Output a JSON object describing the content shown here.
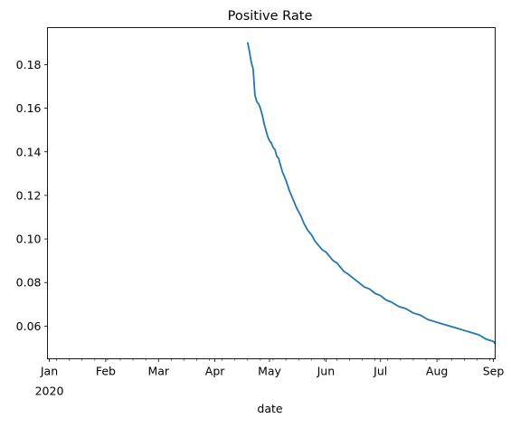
{
  "chart_data": {
    "type": "line",
    "title": "Positive Rate",
    "xlabel": "date",
    "ylabel": "",
    "x_axis": {
      "kind": "date",
      "range": [
        "2019-12-31",
        "2020-09-02"
      ],
      "major_ticks": [
        {
          "date": "2020-01-01",
          "label": "Jan",
          "sublabel": "2020"
        },
        {
          "date": "2020-02-01",
          "label": "Feb"
        },
        {
          "date": "2020-03-01",
          "label": "Mar"
        },
        {
          "date": "2020-04-01",
          "label": "Apr"
        },
        {
          "date": "2020-05-01",
          "label": "May"
        },
        {
          "date": "2020-06-01",
          "label": "Jun"
        },
        {
          "date": "2020-07-01",
          "label": "Jul"
        },
        {
          "date": "2020-08-01",
          "label": "Aug"
        },
        {
          "date": "2020-09-01",
          "label": "Sep"
        }
      ],
      "minor_ticks": "weekly"
    },
    "y_axis": {
      "range": [
        0.045,
        0.197
      ],
      "ticks": [
        0.06,
        0.08,
        0.1,
        0.12,
        0.14,
        0.16,
        0.18
      ],
      "tick_labels": [
        "0.06",
        "0.08",
        "0.10",
        "0.12",
        "0.14",
        "0.16",
        "0.18"
      ]
    },
    "grid": false,
    "legend": "none",
    "series": [
      {
        "color": "#1f77b4",
        "points": [
          [
            "2020-04-19",
            0.19
          ],
          [
            "2020-04-20",
            0.186
          ],
          [
            "2020-04-21",
            0.181
          ],
          [
            "2020-04-22",
            0.178
          ],
          [
            "2020-04-23",
            0.166
          ],
          [
            "2020-04-24",
            0.163
          ],
          [
            "2020-04-25",
            0.162
          ],
          [
            "2020-04-26",
            0.16
          ],
          [
            "2020-04-27",
            0.157
          ],
          [
            "2020-04-28",
            0.153
          ],
          [
            "2020-04-29",
            0.15
          ],
          [
            "2020-04-30",
            0.147
          ],
          [
            "2020-05-01",
            0.145
          ],
          [
            "2020-05-02",
            0.144
          ],
          [
            "2020-05-03",
            0.142
          ],
          [
            "2020-05-04",
            0.141
          ],
          [
            "2020-05-05",
            0.138
          ],
          [
            "2020-05-06",
            0.137
          ],
          [
            "2020-05-07",
            0.134
          ],
          [
            "2020-05-08",
            0.131
          ],
          [
            "2020-05-09",
            0.129
          ],
          [
            "2020-05-10",
            0.127
          ],
          [
            "2020-05-12",
            0.122
          ],
          [
            "2020-05-14",
            0.118
          ],
          [
            "2020-05-16",
            0.114
          ],
          [
            "2020-05-18",
            0.111
          ],
          [
            "2020-05-20",
            0.107
          ],
          [
            "2020-05-22",
            0.104
          ],
          [
            "2020-05-24",
            0.102
          ],
          [
            "2020-05-26",
            0.099
          ],
          [
            "2020-05-28",
            0.097
          ],
          [
            "2020-05-30",
            0.095
          ],
          [
            "2020-06-01",
            0.094
          ],
          [
            "2020-06-03",
            0.092
          ],
          [
            "2020-06-05",
            0.09
          ],
          [
            "2020-06-07",
            0.089
          ],
          [
            "2020-06-09",
            0.087
          ],
          [
            "2020-06-11",
            0.085
          ],
          [
            "2020-06-13",
            0.084
          ],
          [
            "2020-06-16",
            0.082
          ],
          [
            "2020-06-19",
            0.08
          ],
          [
            "2020-06-22",
            0.078
          ],
          [
            "2020-06-25",
            0.077
          ],
          [
            "2020-06-28",
            0.075
          ],
          [
            "2020-07-01",
            0.074
          ],
          [
            "2020-07-04",
            0.072
          ],
          [
            "2020-07-07",
            0.071
          ],
          [
            "2020-07-11",
            0.069
          ],
          [
            "2020-07-15",
            0.068
          ],
          [
            "2020-07-19",
            0.066
          ],
          [
            "2020-07-23",
            0.065
          ],
          [
            "2020-07-27",
            0.063
          ],
          [
            "2020-07-31",
            0.062
          ],
          [
            "2020-08-04",
            0.061
          ],
          [
            "2020-08-08",
            0.06
          ],
          [
            "2020-08-12",
            0.059
          ],
          [
            "2020-08-16",
            0.058
          ],
          [
            "2020-08-20",
            0.057
          ],
          [
            "2020-08-24",
            0.056
          ],
          [
            "2020-08-28",
            0.054
          ],
          [
            "2020-09-01",
            0.053
          ],
          [
            "2020-09-02",
            0.052
          ]
        ]
      }
    ]
  }
}
